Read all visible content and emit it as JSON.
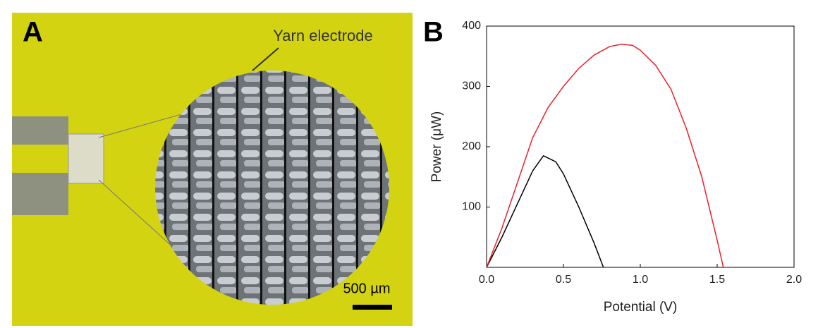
{
  "panel_a": {
    "label": "A",
    "annotation": "Yarn electrode",
    "scale_bar": "500 µm"
  },
  "panel_b_label": "B",
  "chart_data": {
    "type": "line",
    "xlabel": "Potential (V)",
    "ylabel": "Power (μW)",
    "xlim": [
      0,
      2
    ],
    "ylim": [
      0,
      400
    ],
    "xticks": [
      {
        "value": 0,
        "label": "0.0"
      },
      {
        "value": 0.5,
        "label": "0.5"
      },
      {
        "value": 1,
        "label": "1.0"
      },
      {
        "value": 1.5,
        "label": "1.5"
      },
      {
        "value": 2,
        "label": "2.0"
      }
    ],
    "yticks": [
      100,
      200,
      300,
      400
    ],
    "series": [
      {
        "color": "#000000",
        "x": [
          0,
          0.1,
          0.2,
          0.3,
          0.37,
          0.45,
          0.5,
          0.6,
          0.7,
          0.76
        ],
        "values": [
          0,
          50,
          105,
          160,
          185,
          175,
          155,
          100,
          40,
          0
        ]
      },
      {
        "color": "#e8202a",
        "x": [
          0,
          0.1,
          0.2,
          0.3,
          0.4,
          0.5,
          0.6,
          0.7,
          0.8,
          0.88,
          0.95,
          1.0,
          1.1,
          1.2,
          1.3,
          1.4,
          1.5,
          1.54
        ],
        "values": [
          0,
          65,
          140,
          215,
          265,
          300,
          330,
          352,
          366,
          370,
          368,
          360,
          335,
          295,
          230,
          150,
          45,
          0
        ]
      }
    ]
  }
}
